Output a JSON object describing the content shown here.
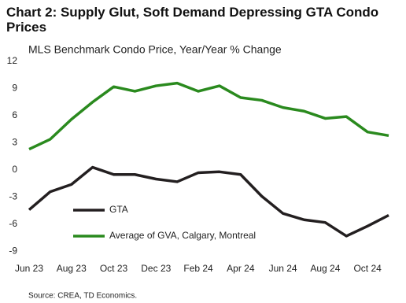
{
  "chart_data": {
    "type": "line",
    "title": "Chart 2: Supply Glut, Soft Demand Depressing GTA Condo Prices",
    "subtitle": "MLS Benchmark Condo Price, Year/Year % Change",
    "source": "Source: CREA, TD Economics.",
    "categories": [
      "Jun 23",
      null,
      "Aug 23",
      null,
      "Oct 23",
      null,
      "Dec 23",
      null,
      "Feb 24",
      null,
      "Apr 24",
      null,
      "Jun 24",
      null,
      "Aug 24",
      null,
      "Oct 24",
      null
    ],
    "series": [
      {
        "name": "GTA",
        "color": "#231f20",
        "values": [
          -4.4,
          -2.4,
          -1.6,
          0.3,
          -0.5,
          -0.5,
          -1.0,
          -1.3,
          -0.3,
          -0.2,
          -0.5,
          -2.9,
          -4.8,
          -5.5,
          -5.8,
          -7.3,
          -6.2,
          -5.0
        ]
      },
      {
        "name": "Average of GVA, Calgary, Montreal",
        "color": "#2a8a1e",
        "values": [
          2.3,
          3.4,
          5.6,
          7.5,
          9.2,
          8.7,
          9.3,
          9.6,
          8.7,
          9.3,
          8.0,
          7.7,
          6.9,
          6.5,
          5.7,
          5.9,
          4.2,
          3.8
        ]
      }
    ],
    "ylim": [
      -10,
      12
    ],
    "yticks": [
      12,
      9,
      6,
      3,
      0,
      -3,
      -6,
      -9
    ],
    "grid": false
  }
}
